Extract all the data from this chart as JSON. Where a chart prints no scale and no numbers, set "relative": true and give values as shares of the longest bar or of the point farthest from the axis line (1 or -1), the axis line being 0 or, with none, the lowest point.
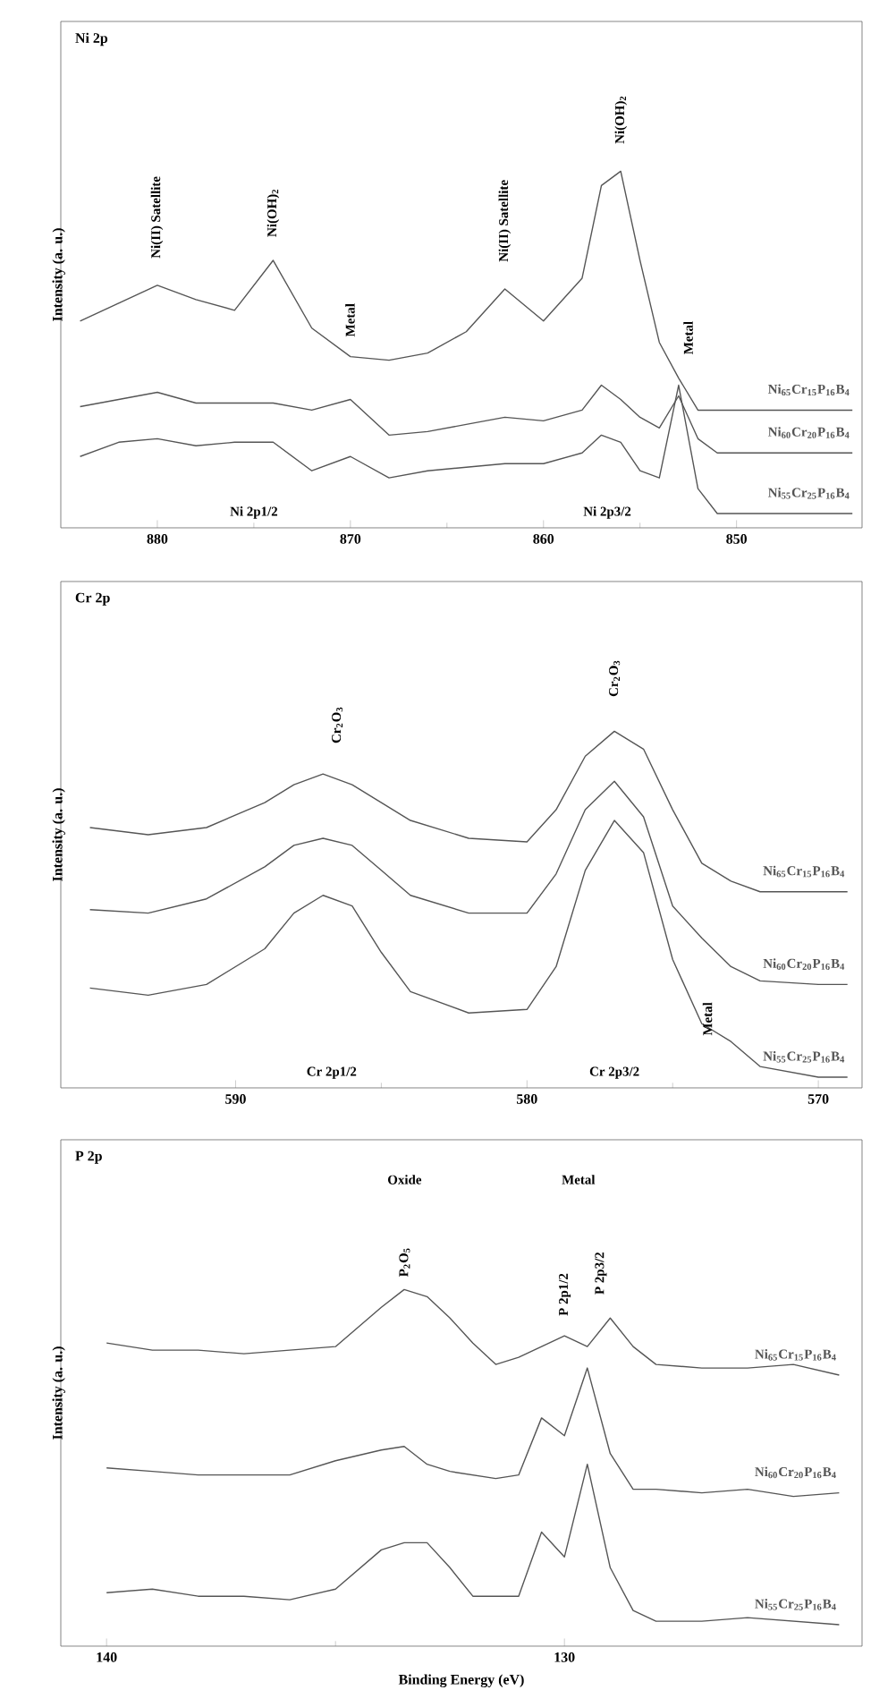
{
  "chart_data": [
    {
      "type": "line",
      "title": "Ni 2p",
      "ylabel": "Intensity (a. u.)",
      "relative": true,
      "xlim": [
        885,
        843.5
      ],
      "xticks": [
        880,
        870,
        860,
        850
      ],
      "x": [
        884,
        882,
        880,
        878,
        876,
        874,
        872,
        870,
        868,
        866,
        864,
        862,
        860,
        858,
        857,
        856,
        855,
        854,
        853,
        852,
        851,
        850,
        848,
        846,
        844
      ],
      "series": [
        {
          "name": "Ni$_{65}$Cr$_{15}$P$_{16}$B$_{4}$",
          "color": "#555555",
          "values": [
            0.58,
            0.63,
            0.68,
            0.64,
            0.61,
            0.75,
            0.56,
            0.48,
            0.47,
            0.49,
            0.55,
            0.67,
            0.58,
            0.7,
            0.96,
            1.0,
            0.75,
            0.52,
            0.42,
            0.33,
            0.33,
            0.33,
            0.33,
            0.33,
            0.33
          ]
        },
        {
          "name": "Ni$_{60}$Cr$_{20}$P$_{16}$B$_{4}$",
          "color": "#555555",
          "values": [
            0.34,
            0.36,
            0.38,
            0.35,
            0.35,
            0.35,
            0.33,
            0.36,
            0.26,
            0.27,
            0.29,
            0.31,
            0.3,
            0.33,
            0.4,
            0.36,
            0.31,
            0.28,
            0.37,
            0.25,
            0.21,
            0.21,
            0.21,
            0.21,
            0.21
          ]
        },
        {
          "name": "Ni$_{55}$Cr$_{25}$P$_{16}$B$_{4}$",
          "color": "#555555",
          "values": [
            0.2,
            0.24,
            0.25,
            0.23,
            0.24,
            0.24,
            0.16,
            0.2,
            0.14,
            0.16,
            0.17,
            0.18,
            0.18,
            0.21,
            0.26,
            0.24,
            0.16,
            0.14,
            0.4,
            0.11,
            0.04,
            0.04,
            0.04,
            0.04,
            0.04
          ]
        }
      ],
      "annotations": [
        "Ni(II) Satellite",
        "Ni(OH)$_{2}$",
        "Metal",
        "Ni(II) Satellite",
        "Ni(OH)$_{2}$",
        "Metal",
        "Ni 2p1/2",
        "Ni 2p3/2"
      ]
    },
    {
      "type": "line",
      "title": "Cr 2p",
      "ylabel": "Intensity (a. u.)",
      "relative": true,
      "xlim": [
        596,
        568.5
      ],
      "xticks": [
        590,
        580,
        570
      ],
      "x": [
        595,
        593,
        591,
        589,
        588,
        587,
        586,
        585,
        584,
        582,
        580,
        579,
        578,
        577,
        576,
        575,
        574,
        573,
        572,
        570,
        569
      ],
      "series": [
        {
          "name": "Ni$_{65}$Cr$_{15}$P$_{16}$B$_{4}$",
          "color": "#555555",
          "values": [
            0.73,
            0.71,
            0.73,
            0.8,
            0.85,
            0.88,
            0.85,
            0.8,
            0.75,
            0.7,
            0.69,
            0.78,
            0.93,
            1.0,
            0.95,
            0.78,
            0.63,
            0.58,
            0.55,
            0.55,
            0.55
          ]
        },
        {
          "name": "Ni$_{60}$Cr$_{20}$P$_{16}$B$_{4}$",
          "color": "#555555",
          "values": [
            0.5,
            0.49,
            0.53,
            0.62,
            0.68,
            0.7,
            0.68,
            0.61,
            0.54,
            0.49,
            0.49,
            0.6,
            0.78,
            0.86,
            0.76,
            0.51,
            0.42,
            0.34,
            0.3,
            0.29,
            0.29
          ]
        },
        {
          "name": "Ni$_{55}$Cr$_{25}$P$_{16}$B$_{4}$",
          "color": "#555555",
          "values": [
            0.28,
            0.26,
            0.29,
            0.39,
            0.49,
            0.54,
            0.51,
            0.38,
            0.27,
            0.21,
            0.22,
            0.34,
            0.61,
            0.75,
            0.66,
            0.36,
            0.18,
            0.13,
            0.06,
            0.03,
            0.03
          ]
        }
      ],
      "annotations": [
        "Cr$_{2}$O$_{3}$",
        "Cr$_{2}$O$_{3}$",
        "Metal",
        "Cr 2p1/2",
        "Cr 2p3/2"
      ]
    },
    {
      "type": "line",
      "title": "P 2p",
      "ylabel": "Intensity (a. u.)",
      "xlabel": "Binding Energy (eV)",
      "relative": true,
      "xlim": [
        141,
        123.5
      ],
      "xticks": [
        140,
        130
      ],
      "x": [
        140,
        139,
        138,
        137,
        136,
        135,
        134,
        133.5,
        133,
        132.5,
        132,
        131.5,
        131,
        130.5,
        130,
        129.5,
        129,
        128.5,
        128,
        127,
        126,
        125,
        124
      ],
      "series": [
        {
          "name": "Ni$_{65}$Cr$_{15}$P$_{16}$B$_{4}$",
          "color": "#555555",
          "values": [
            0.85,
            0.83,
            0.83,
            0.82,
            0.83,
            0.84,
            0.95,
            1.0,
            0.98,
            0.92,
            0.85,
            0.79,
            0.81,
            0.84,
            0.87,
            0.84,
            0.92,
            0.84,
            0.79,
            0.78,
            0.78,
            0.79,
            0.76
          ]
        },
        {
          "name": "Ni$_{60}$Cr$_{20}$P$_{16}$B$_{4}$",
          "color": "#555555",
          "values": [
            0.5,
            0.49,
            0.48,
            0.48,
            0.48,
            0.52,
            0.55,
            0.56,
            0.51,
            0.49,
            0.48,
            0.47,
            0.48,
            0.64,
            0.59,
            0.78,
            0.54,
            0.44,
            0.44,
            0.43,
            0.44,
            0.42,
            0.43
          ]
        },
        {
          "name": "Ni$_{55}$Cr$_{25}$P$_{16}$B$_{4}$",
          "color": "#555555",
          "values": [
            0.15,
            0.16,
            0.14,
            0.14,
            0.13,
            0.16,
            0.27,
            0.29,
            0.29,
            0.22,
            0.14,
            0.14,
            0.14,
            0.32,
            0.25,
            0.51,
            0.22,
            0.1,
            0.07,
            0.07,
            0.08,
            0.07,
            0.06
          ]
        }
      ],
      "annotations": [
        "Oxide",
        "Metal",
        "P$_{2}$O$_{5}$",
        "P 2p1/2",
        "P 2p3/2"
      ]
    }
  ]
}
